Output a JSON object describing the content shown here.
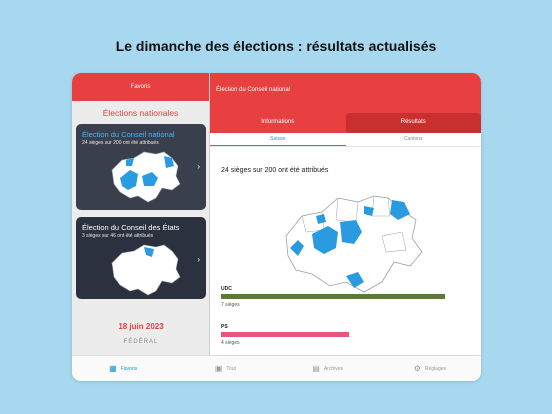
{
  "headline": "Le dimanche des élections : résultats actualisés",
  "sidebar": {
    "header": "Favoris",
    "section_title": "Élections nationales",
    "cards": [
      {
        "title": "Élection du Conseil national",
        "subtitle": "24 sièges sur 200 ont été attribués"
      },
      {
        "title": "Élection du Conseil des États",
        "subtitle": "3 sièges sur 46 ont été attribués"
      }
    ],
    "date": "18 juin 2023",
    "level": "FÉDÉRAL"
  },
  "main": {
    "header": "Élection du Conseil national",
    "segments": [
      "Informations",
      "Résultats"
    ],
    "sub_tabs": [
      "Suisse",
      "Cantons"
    ],
    "results_title": "24 sièges sur 200 ont été attribués",
    "parties": [
      {
        "name": "UDC",
        "seats": "7 sièges",
        "seat_count": 7,
        "color": "#5b7a33"
      },
      {
        "name": "PS",
        "seats": "4 sièges",
        "seat_count": 4,
        "color": "#e8567a"
      }
    ]
  },
  "tabbar": [
    {
      "label": "Favoris",
      "icon": "star-grid-icon"
    },
    {
      "label": "Tout",
      "icon": "box-icon"
    },
    {
      "label": "Archives",
      "icon": "archive-icon"
    },
    {
      "label": "Réglages",
      "icon": "gear-icon"
    }
  ],
  "colors": {
    "accent_red": "#e84040",
    "accent_blue": "#1597d8",
    "map_blue": "#2a9be0"
  }
}
